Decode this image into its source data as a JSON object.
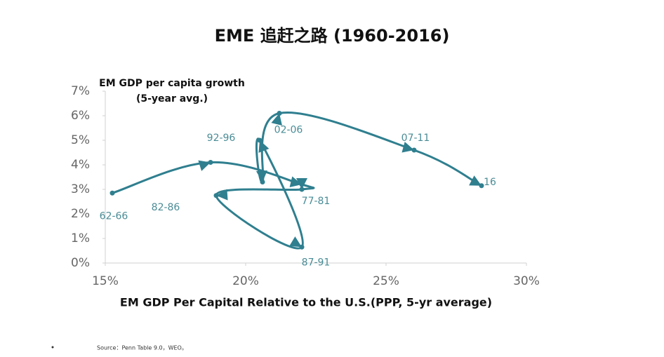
{
  "chart_data": {
    "type": "connected-scatter",
    "title": "EME 追赶之路 (1960-2016)",
    "y_label": [
      "EM GDP per capita growth",
      "(5-year avg.)"
    ],
    "x_label": "EM GDP Per Capital Relative to the U.S.(PPP, 5-yr average)",
    "source": "Source：Penn Table 9.0，WEO。",
    "color": "#2f7f8f",
    "xlim": [
      15,
      30
    ],
    "ylim": [
      0,
      7
    ],
    "xticks": [
      {
        "value": 15,
        "label": "15%"
      },
      {
        "value": 20,
        "label": "20%"
      },
      {
        "value": 25,
        "label": "25%"
      },
      {
        "value": 30,
        "label": "30%"
      }
    ],
    "yticks": [
      {
        "value": 0,
        "label": "0%"
      },
      {
        "value": 1,
        "label": "1%"
      },
      {
        "value": 2,
        "label": "2%"
      },
      {
        "value": 3,
        "label": "3%"
      },
      {
        "value": 4,
        "label": "4%"
      },
      {
        "value": 5,
        "label": "5%"
      },
      {
        "value": 6,
        "label": "6%"
      },
      {
        "value": 7,
        "label": "7%"
      }
    ],
    "x": [
      15.25,
      18.75,
      22.0,
      22.0,
      18.95,
      22.0,
      20.5,
      20.6,
      21.2,
      26.0,
      28.4
    ],
    "y": [
      2.85,
      4.1,
      3.2,
      3.0,
      2.75,
      0.65,
      5.0,
      3.3,
      6.1,
      4.6,
      3.15
    ],
    "point_labels": [
      "62-66",
      null,
      null,
      "77-81",
      "82-86",
      "87-91",
      "92-96",
      null,
      "02-06",
      "07-11",
      "16"
    ]
  }
}
